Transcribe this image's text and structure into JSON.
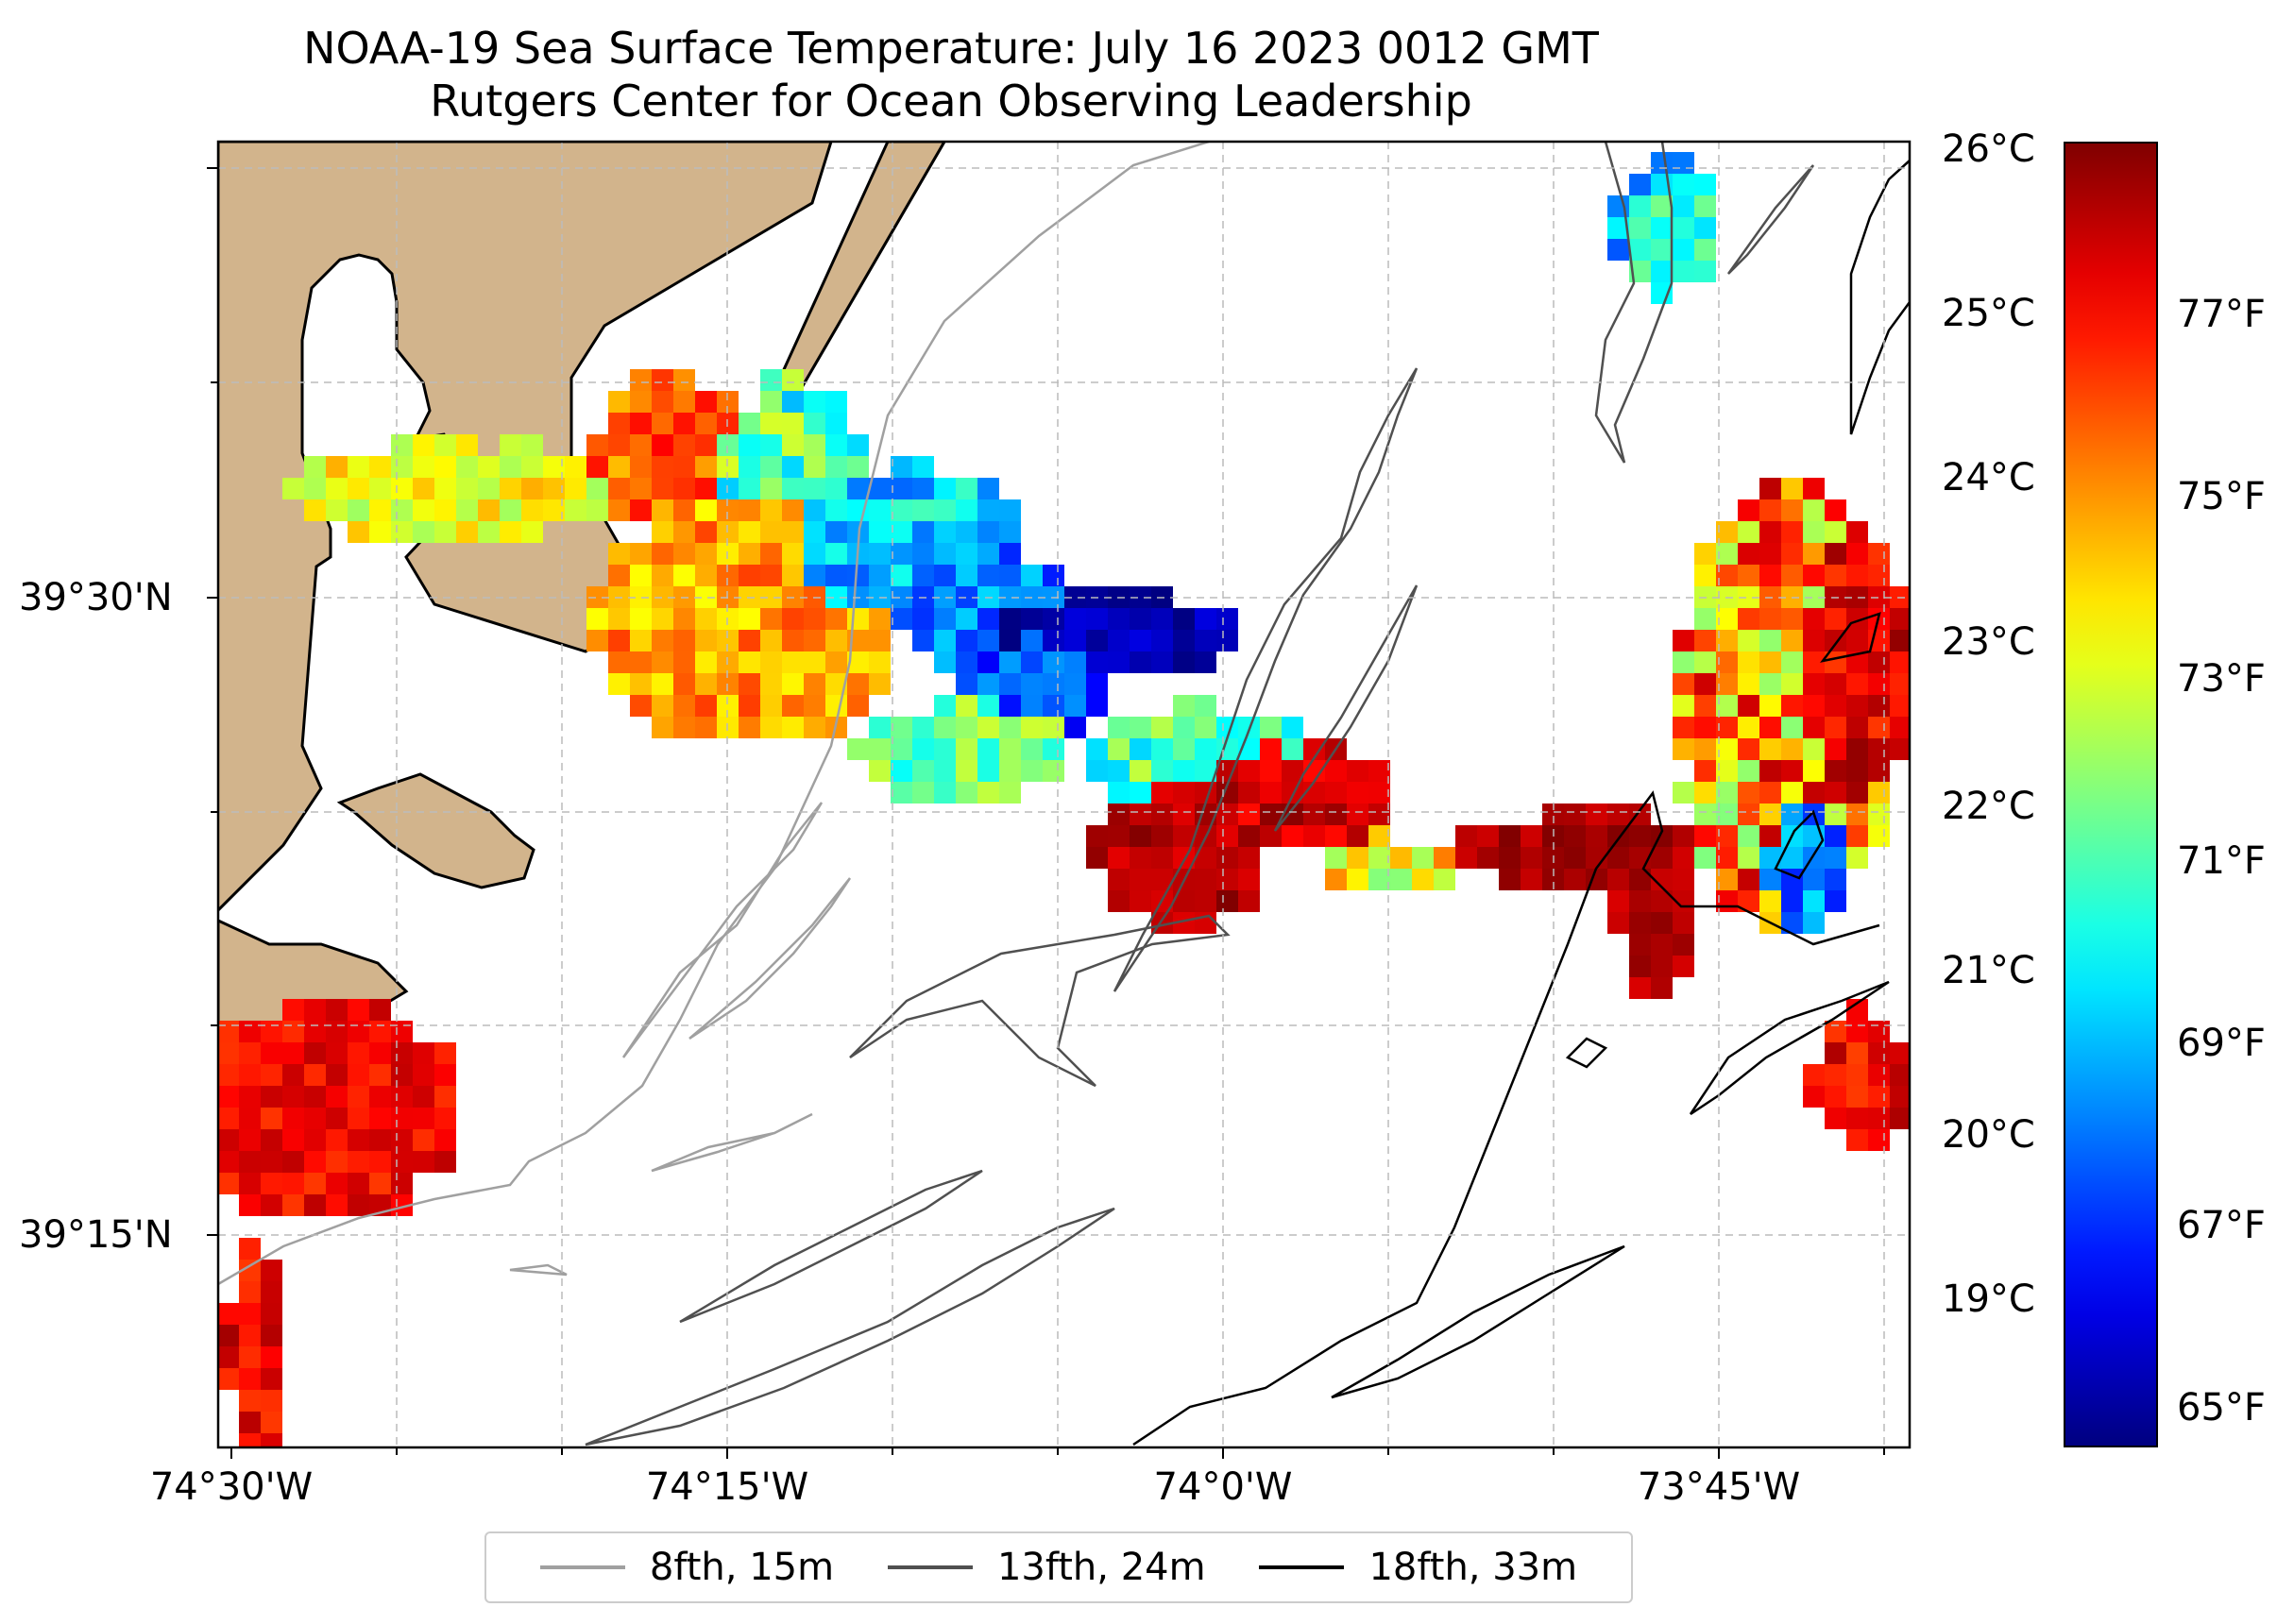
{
  "title": {
    "line1": "NOAA-19 Sea Surface Temperature: July 16 2023 0012 GMT",
    "line2": "Rutgers Center for Ocean Observing Leadership"
  },
  "x_axis": {
    "ticks": [
      "74°30'W",
      "74°15'W",
      "74°0'W",
      "73°45'W"
    ]
  },
  "y_axis": {
    "ticks": [
      "39°30'N",
      "39°15'N"
    ]
  },
  "colorbar": {
    "celsius_labels": [
      "26°C",
      "25°C",
      "24°C",
      "23°C",
      "22°C",
      "21°C",
      "20°C",
      "19°C"
    ],
    "fahrenheit_labels": [
      "77°F",
      "75°F",
      "73°F",
      "71°F",
      "69°F",
      "67°F",
      "65°F"
    ],
    "min_c": 18.1,
    "max_c": 26.05,
    "colormap": "jet"
  },
  "legend": {
    "items": [
      {
        "label": "8fth, 15m",
        "color": "#a0a0a0"
      },
      {
        "label": "13fth, 24m",
        "color": "#505050"
      },
      {
        "label": "18fth, 33m",
        "color": "#000000"
      }
    ]
  },
  "colors": {
    "land": "#d2b48c",
    "gridline": "#bbbbbb"
  }
}
